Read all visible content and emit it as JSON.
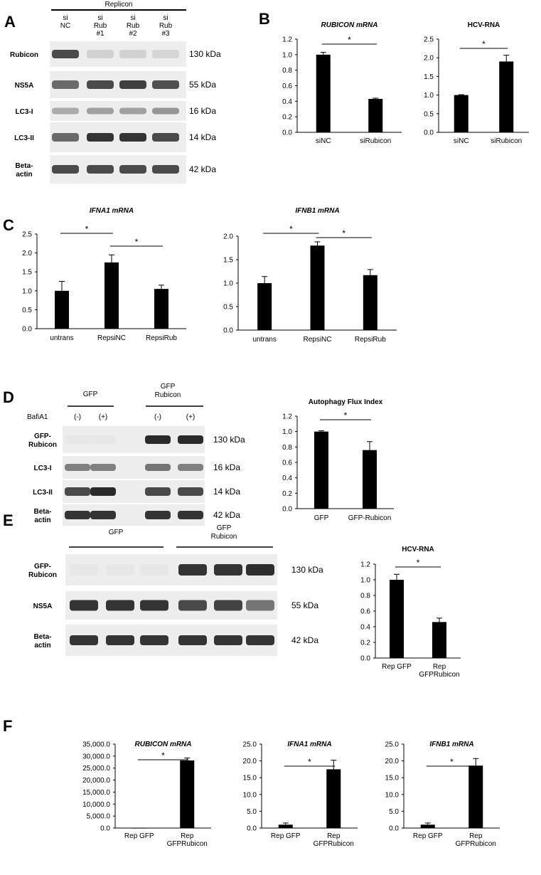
{
  "panels": {
    "A": {
      "letter": "A",
      "header": "Replicon",
      "lanes": [
        [
          "si",
          "NC"
        ],
        [
          "si",
          "Rub",
          "#1"
        ],
        [
          "si",
          "Rub",
          "#2"
        ],
        [
          "si",
          "Rub",
          "#3"
        ]
      ],
      "blots": [
        {
          "label": [
            "Rubicon"
          ],
          "kda": "130 kDa",
          "intensity": [
            0.75,
            0.12,
            0.12,
            0.1
          ]
        },
        {
          "label": [
            "NS5A"
          ],
          "kda": "55 kDa",
          "intensity": [
            0.6,
            0.75,
            0.8,
            0.72
          ]
        },
        {
          "label": [
            "LC3-I"
          ],
          "kda": "16 kDa",
          "intensity": [
            0.3,
            0.35,
            0.35,
            0.4
          ]
        },
        {
          "label": [
            "LC3-II"
          ],
          "kda": "14 kDa",
          "intensity": [
            0.6,
            0.85,
            0.85,
            0.75
          ]
        },
        {
          "label": [
            "Beta-",
            "actin"
          ],
          "kda": "42 kDa",
          "intensity": [
            0.75,
            0.75,
            0.75,
            0.75
          ]
        }
      ]
    },
    "B": {
      "letter": "B"
    },
    "C": {
      "letter": "C"
    },
    "D": {
      "letter": "D",
      "groups": [
        "GFP",
        "GFP Rubicon"
      ],
      "treatment_label": "BafiA1",
      "treatments": [
        "(-)",
        "(+)",
        "(-)",
        "(+)"
      ],
      "blots": [
        {
          "label": [
            "GFP-",
            "Rubicon"
          ],
          "kda": "130 kDa",
          "intensity": [
            0.02,
            0.02,
            0.9,
            0.9
          ]
        },
        {
          "label": [
            "LC3-I"
          ],
          "kda": "16 kDa",
          "intensity": [
            0.5,
            0.5,
            0.55,
            0.5
          ]
        },
        {
          "label": [
            "LC3-II"
          ],
          "kda": "14 kDa",
          "intensity": [
            0.75,
            0.9,
            0.75,
            0.75
          ]
        },
        {
          "label": [
            "Beta-",
            "actin"
          ],
          "kda": "42 kDa",
          "intensity": [
            0.85,
            0.85,
            0.85,
            0.85
          ]
        }
      ]
    },
    "E": {
      "letter": "E",
      "groups": [
        "GFP",
        "GFP Rubicon"
      ],
      "blots": [
        {
          "label": [
            "GFP-",
            "Rubicon"
          ],
          "kda": "130 kDa",
          "intensity": [
            0.02,
            0.02,
            0.02,
            0.85,
            0.85,
            0.88
          ]
        },
        {
          "label": [
            "NS5A"
          ],
          "kda": "55 kDa",
          "intensity": [
            0.85,
            0.85,
            0.85,
            0.75,
            0.78,
            0.55
          ]
        },
        {
          "label": [
            "Beta-",
            "actin"
          ],
          "kda": "42 kDa",
          "intensity": [
            0.85,
            0.85,
            0.85,
            0.85,
            0.85,
            0.85
          ]
        }
      ]
    },
    "F": {
      "letter": "F"
    }
  },
  "chart_data": [
    {
      "id": "B1",
      "type": "bar",
      "title": "RUBICON mRNA",
      "title_italic": true,
      "categories": [
        "siNC",
        "siRubicon"
      ],
      "values": [
        1.0,
        0.43
      ],
      "errors": [
        0.03,
        0.01
      ],
      "ylim": [
        0,
        1.2
      ],
      "yticks": [
        "0.0",
        "0.2",
        "0.4",
        "0.6",
        "0.8",
        "1.0",
        "1.2"
      ],
      "significance": [
        {
          "from": 0,
          "to": 1,
          "label": "*"
        }
      ]
    },
    {
      "id": "B2",
      "type": "bar",
      "title": "HCV-RNA",
      "title_italic": false,
      "categories": [
        "siNC",
        "siRubicon"
      ],
      "values": [
        1.0,
        1.9
      ],
      "errors": [
        0.01,
        0.17
      ],
      "ylim": [
        0,
        2.5
      ],
      "yticks": [
        "0.0",
        "0.5",
        "1.0",
        "1.5",
        "2.0",
        "2.5"
      ],
      "significance": [
        {
          "from": 0,
          "to": 1,
          "label": "*"
        }
      ]
    },
    {
      "id": "C1",
      "type": "bar",
      "title": "IFNA1 mRNA",
      "title_italic": true,
      "categories": [
        "untrans",
        "RepsiNC",
        "RepsiRub"
      ],
      "values": [
        1.0,
        1.75,
        1.05
      ],
      "errors": [
        0.25,
        0.2,
        0.1
      ],
      "ylim": [
        0,
        2.5
      ],
      "yticks": [
        "0.0",
        "0.5",
        "1.0",
        "1.5",
        "2.0",
        "2.5"
      ],
      "significance": [
        {
          "from": 0,
          "to": 1,
          "label": "*"
        },
        {
          "from": 1,
          "to": 2,
          "label": "*"
        }
      ]
    },
    {
      "id": "C2",
      "type": "bar",
      "title": "IFNB1 mRNA",
      "title_italic": true,
      "categories": [
        "untrans",
        "RepsiNC",
        "RepsiRub"
      ],
      "values": [
        1.0,
        1.8,
        1.17
      ],
      "errors": [
        0.14,
        0.08,
        0.12
      ],
      "ylim": [
        0,
        2.0
      ],
      "yticks": [
        "0.0",
        "0.5",
        "1.0",
        "1.5",
        "2.0"
      ],
      "significance": [
        {
          "from": 0,
          "to": 1,
          "label": "*"
        },
        {
          "from": 1,
          "to": 2,
          "label": "*"
        }
      ]
    },
    {
      "id": "D1",
      "type": "bar",
      "title": "Autophagy Flux Index",
      "title_italic": false,
      "categories": [
        "GFP",
        "GFP-Rubicon"
      ],
      "values": [
        1.0,
        0.76
      ],
      "errors": [
        0.01,
        0.11
      ],
      "ylim": [
        0,
        1.2
      ],
      "yticks": [
        "0.0",
        "0.2",
        "0.4",
        "0.6",
        "0.8",
        "1.0",
        "1.2"
      ],
      "significance": [
        {
          "from": 0,
          "to": 1,
          "label": "*"
        }
      ]
    },
    {
      "id": "E1",
      "type": "bar",
      "title": "HCV-RNA",
      "title_italic": false,
      "categories": [
        "Rep GFP",
        "Rep GFPRubicon"
      ],
      "values": [
        1.0,
        0.46
      ],
      "errors": [
        0.07,
        0.05
      ],
      "ylim": [
        0,
        1.2
      ],
      "yticks": [
        "0.0",
        "0.2",
        "0.4",
        "0.6",
        "0.8",
        "1.0",
        "1.2"
      ],
      "significance": [
        {
          "from": 0,
          "to": 1,
          "label": "*"
        }
      ]
    },
    {
      "id": "F1",
      "type": "bar",
      "title": "RUBICON mRNA",
      "title_italic": true,
      "categories": [
        "Rep GFP",
        "Rep GFPRubicon"
      ],
      "values": [
        1.0,
        28200
      ],
      "errors": [
        0,
        1000
      ],
      "ylim": [
        0,
        35000
      ],
      "yticks": [
        "0.0",
        "5,000.0",
        "10,000.0",
        "15,000.0",
        "20,000.0",
        "25,000.0",
        "30,000.0",
        "35,000.0"
      ],
      "significance": [
        {
          "from": 0,
          "to": 1,
          "label": "*"
        }
      ]
    },
    {
      "id": "F2",
      "type": "bar",
      "title": "IFNA1 mRNA",
      "title_italic": true,
      "categories": [
        "Rep GFP",
        "Rep GFPRubicon"
      ],
      "values": [
        1.0,
        17.5
      ],
      "errors": [
        0.5,
        2.7
      ],
      "ylim": [
        0,
        25
      ],
      "yticks": [
        "0.0",
        "5.0",
        "10.0",
        "15.0",
        "20.0",
        "25.0"
      ],
      "significance": [
        {
          "from": 0,
          "to": 1,
          "label": "*"
        }
      ]
    },
    {
      "id": "F3",
      "type": "bar",
      "title": "IFNB1 mRNA",
      "title_italic": true,
      "categories": [
        "Rep GFP",
        "Rep GFPRubicon"
      ],
      "values": [
        1.0,
        18.6
      ],
      "errors": [
        0.5,
        2.1
      ],
      "ylim": [
        0,
        25
      ],
      "yticks": [
        "0.0",
        "5.0",
        "10.0",
        "15.0",
        "20.0",
        "25.0"
      ],
      "significance": [
        {
          "from": 0,
          "to": 1,
          "label": "*"
        }
      ]
    }
  ]
}
